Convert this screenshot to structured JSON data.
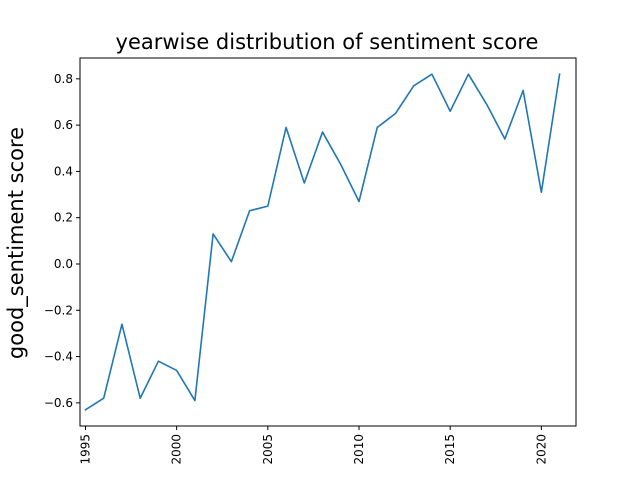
{
  "chart_data": {
    "type": "line",
    "title": "yearwise distribution of sentiment score",
    "xlabel": "",
    "ylabel": "good_sentiment score",
    "xlim": [
      1994.7,
      2021.9
    ],
    "ylim": [
      -0.7,
      0.89
    ],
    "x_ticks": [
      1995,
      2000,
      2005,
      2010,
      2015,
      2020
    ],
    "x_tick_labels": [
      "1995",
      "2000",
      "2005",
      "2010",
      "2015",
      "2020"
    ],
    "y_ticks": [
      -0.6,
      -0.4,
      -0.2,
      0.0,
      0.2,
      0.4,
      0.6,
      0.8
    ],
    "y_tick_labels": [
      "−0.6",
      "−0.4",
      "−0.2",
      "0.0",
      "0.2",
      "0.4",
      "0.6",
      "0.8"
    ],
    "grid": false,
    "color": "#1f77b4",
    "series": [
      {
        "x": [
          1995,
          1996,
          1997,
          1998,
          1999,
          2000,
          2001,
          2002,
          2003,
          2004,
          2005,
          2006,
          2007,
          2008,
          2009,
          2010,
          2011,
          2012,
          2013,
          2014,
          2015,
          2016,
          2017,
          2018,
          2019,
          2020,
          2021
        ],
        "values": [
          -0.63,
          -0.58,
          -0.26,
          -0.58,
          -0.42,
          -0.46,
          -0.59,
          0.13,
          0.01,
          0.23,
          0.25,
          0.59,
          0.35,
          0.57,
          0.43,
          0.27,
          0.59,
          0.65,
          0.77,
          0.82,
          0.66,
          0.82,
          0.69,
          0.54,
          0.75,
          0.31,
          0.82
        ]
      }
    ]
  }
}
